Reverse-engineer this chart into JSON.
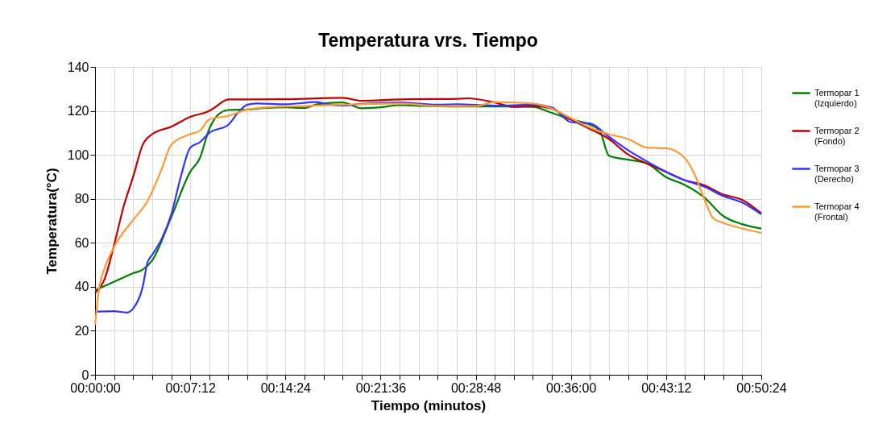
{
  "chart_data": {
    "type": "line",
    "title": "Temperatura vrs. Tiempo",
    "xlabel": "Tiempo (minutos)",
    "ylabel": "Temperatura(°C)",
    "xlim": [
      0,
      0.84
    ],
    "ylim": [
      0,
      140
    ],
    "xticks": [
      {
        "value": 0,
        "label": "00:00:00"
      },
      {
        "value": 0.024,
        "label": null
      },
      {
        "value": 0.048,
        "label": null
      },
      {
        "value": 0.072,
        "label": null
      },
      {
        "value": 0.096,
        "label": null
      },
      {
        "value": 0.12,
        "label": "00:07:12"
      },
      {
        "value": 0.144,
        "label": null
      },
      {
        "value": 0.168,
        "label": null
      },
      {
        "value": 0.192,
        "label": null
      },
      {
        "value": 0.216,
        "label": null
      },
      {
        "value": 0.24,
        "label": "00:14:24"
      },
      {
        "value": 0.264,
        "label": null
      },
      {
        "value": 0.288,
        "label": null
      },
      {
        "value": 0.312,
        "label": null
      },
      {
        "value": 0.336,
        "label": null
      },
      {
        "value": 0.36,
        "label": "00:21:36"
      },
      {
        "value": 0.384,
        "label": null
      },
      {
        "value": 0.408,
        "label": null
      },
      {
        "value": 0.432,
        "label": null
      },
      {
        "value": 0.456,
        "label": null
      },
      {
        "value": 0.48,
        "label": "00:28:48"
      },
      {
        "value": 0.504,
        "label": null
      },
      {
        "value": 0.528,
        "label": null
      },
      {
        "value": 0.552,
        "label": null
      },
      {
        "value": 0.576,
        "label": null
      },
      {
        "value": 0.6,
        "label": "00:36:00"
      },
      {
        "value": 0.624,
        "label": null
      },
      {
        "value": 0.648,
        "label": null
      },
      {
        "value": 0.672,
        "label": null
      },
      {
        "value": 0.696,
        "label": null
      },
      {
        "value": 0.72,
        "label": "00:43:12"
      },
      {
        "value": 0.744,
        "label": null
      },
      {
        "value": 0.768,
        "label": null
      },
      {
        "value": 0.792,
        "label": null
      },
      {
        "value": 0.816,
        "label": null
      },
      {
        "value": 0.84,
        "label": "00:50:24"
      }
    ],
    "yticks": [
      0,
      20,
      40,
      60,
      80,
      100,
      120,
      140
    ],
    "grid": true,
    "legend": "right",
    "marker": "none",
    "line_style": "solid",
    "series": [
      {
        "name": "Termopar 1\n(Izquierdo)",
        "color": "#008000",
        "x": [
          0,
          0.024,
          0.048,
          0.06,
          0.072,
          0.096,
          0.12,
          0.132,
          0.144,
          0.156,
          0.168,
          0.192,
          0.216,
          0.24,
          0.264,
          0.28,
          0.312,
          0.336,
          0.36,
          0.384,
          0.408,
          0.456,
          0.528,
          0.552,
          0.576,
          0.6,
          0.624,
          0.636,
          0.648,
          0.672,
          0.696,
          0.72,
          0.744,
          0.768,
          0.792,
          0.816,
          0.84
        ],
        "values": [
          38.4,
          42.3,
          46.2,
          47.8,
          52,
          71.6,
          92.3,
          98.4,
          111.8,
          118.5,
          120.4,
          120.6,
          121.3,
          121.6,
          121.3,
          123,
          123.8,
          121.2,
          121.6,
          122.6,
          122.3,
          122,
          122,
          121.8,
          119.1,
          116.1,
          113.7,
          111.2,
          99.6,
          97.8,
          96,
          89.9,
          86.2,
          80.7,
          72.2,
          68.5,
          66.5
        ]
      },
      {
        "name": "Termopar 2\n(Fondo)",
        "color": "#c00000",
        "x": [
          0,
          0.012,
          0.024,
          0.036,
          0.048,
          0.06,
          0.072,
          0.096,
          0.12,
          0.144,
          0.15,
          0.168,
          0.192,
          0.24,
          0.312,
          0.336,
          0.384,
          0.456,
          0.47,
          0.504,
          0.528,
          0.552,
          0.576,
          0.6,
          0.624,
          0.648,
          0.672,
          0.696,
          0.72,
          0.744,
          0.768,
          0.792,
          0.816,
          0.84
        ],
        "values": [
          37.2,
          43.5,
          59,
          76.5,
          90,
          104.5,
          109.4,
          112.8,
          117.3,
          120,
          121.3,
          125.2,
          125.2,
          125.3,
          125.9,
          124.6,
          125.2,
          125.5,
          125.7,
          123.8,
          121.8,
          122.2,
          121,
          116.1,
          111.8,
          107.2,
          100.2,
          96,
          92.3,
          88.4,
          86.2,
          82,
          79.5,
          73.4
        ]
      },
      {
        "name": "Termopar 3\n(Derecho)",
        "color": "#3333ff",
        "x": [
          0,
          0.024,
          0.04,
          0.048,
          0.06,
          0.066,
          0.072,
          0.084,
          0.096,
          0.108,
          0.12,
          0.132,
          0.144,
          0.168,
          0.18,
          0.192,
          0.204,
          0.24,
          0.28,
          0.288,
          0.312,
          0.336,
          0.384,
          0.432,
          0.456,
          0.504,
          0.552,
          0.576,
          0.6,
          0.624,
          0.648,
          0.672,
          0.696,
          0.72,
          0.744,
          0.768,
          0.792,
          0.816,
          0.84
        ],
        "values": [
          28.7,
          28.9,
          28.3,
          30.1,
          39.9,
          50.9,
          54.5,
          61.8,
          72.8,
          89.9,
          103.3,
          105.7,
          110,
          113.7,
          119.1,
          122.8,
          123.4,
          123,
          124,
          123.4,
          122.4,
          123.2,
          123.8,
          122.8,
          123,
          122.4,
          122.8,
          121.6,
          114.9,
          114.3,
          108.2,
          102.1,
          97,
          92.3,
          88.4,
          85.6,
          81.3,
          78.3,
          73
        ]
      },
      {
        "name": "Termopar 4\n(Frontal)",
        "color": "#ff9933",
        "x": [
          0,
          0.006,
          0.012,
          0.024,
          0.048,
          0.066,
          0.084,
          0.096,
          0.12,
          0.132,
          0.144,
          0.168,
          0.192,
          0.216,
          0.264,
          0.312,
          0.384,
          0.432,
          0.48,
          0.504,
          0.552,
          0.576,
          0.6,
          0.624,
          0.648,
          0.672,
          0.696,
          0.72,
          0.744,
          0.756,
          0.768,
          0.78,
          0.792,
          0.816,
          0.84
        ],
        "values": [
          22.8,
          41.1,
          48.4,
          58.2,
          70.4,
          78.9,
          93.5,
          104.5,
          109.4,
          110.9,
          116.1,
          117.7,
          120.6,
          121.6,
          122.2,
          122.8,
          123.4,
          122.2,
          122.2,
          124,
          123.4,
          121,
          116.7,
          112.4,
          109.4,
          107.2,
          103.3,
          103,
          98.4,
          91.1,
          80.1,
          71,
          69.1,
          66.5,
          64.5
        ]
      }
    ]
  }
}
